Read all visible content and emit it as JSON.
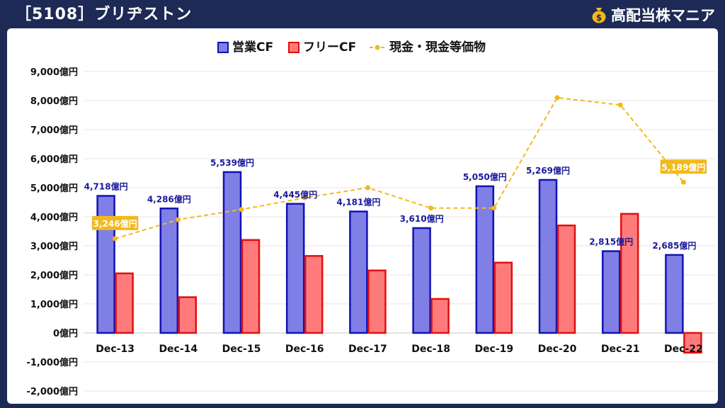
{
  "header": {
    "title": "［5108］ブリヂストン",
    "brand": "高配当株マニア"
  },
  "colors": {
    "header_bg": "#1d2a55",
    "operating_cf_fill": "#7f7fe6",
    "operating_cf_stroke": "#1212b4",
    "free_cf_fill": "#ff7b7b",
    "free_cf_stroke": "#e01010",
    "cash_line": "#f2b91c",
    "operating_label": "#1a1a9c"
  },
  "chart_data": {
    "type": "bar",
    "title": "",
    "xlabel": "",
    "ylabel": "",
    "unit": "億円",
    "ylim": [
      -2000,
      9000
    ],
    "yticks": [
      9000,
      8000,
      7000,
      6000,
      5000,
      4000,
      3000,
      2000,
      1000,
      0,
      -1000,
      -2000
    ],
    "ytick_labels": [
      "9,000億円",
      "8,000億円",
      "7,000億円",
      "6,000億円",
      "5,000億円",
      "4,000億円",
      "3,000億円",
      "2,000億円",
      "1,000億円",
      "0億円",
      "-1,000億円",
      "-2,000億円"
    ],
    "categories": [
      "Dec-13",
      "Dec-14",
      "Dec-15",
      "Dec-16",
      "Dec-17",
      "Dec-18",
      "Dec-19",
      "Dec-20",
      "Dec-21",
      "Dec-22"
    ],
    "legend_position": "top",
    "grid": true,
    "series": [
      {
        "name": "営業CF",
        "type": "bar",
        "values": [
          4718,
          4286,
          5539,
          4445,
          4181,
          3610,
          5050,
          5269,
          2815,
          2685
        ],
        "data_labels": [
          "4,718億円",
          "4,286億円",
          "5,539億円",
          "4,445億円",
          "4,181億円",
          "3,610億円",
          "5,050億円",
          "5,269億円",
          "2,815億円",
          "2,685億円"
        ]
      },
      {
        "name": "フリーCF",
        "type": "bar",
        "values": [
          2050,
          1230,
          3200,
          2650,
          2150,
          1170,
          2420,
          3700,
          4100,
          -680
        ]
      },
      {
        "name": "現金・現金等価物",
        "type": "line",
        "values": [
          3246,
          3900,
          4250,
          4650,
          5000,
          4300,
          4300,
          8100,
          7850,
          5189
        ],
        "data_labels": [
          "3,246億円",
          "",
          "",
          "",
          "",
          "",
          "",
          "",
          "",
          "5,189億円"
        ]
      }
    ]
  }
}
